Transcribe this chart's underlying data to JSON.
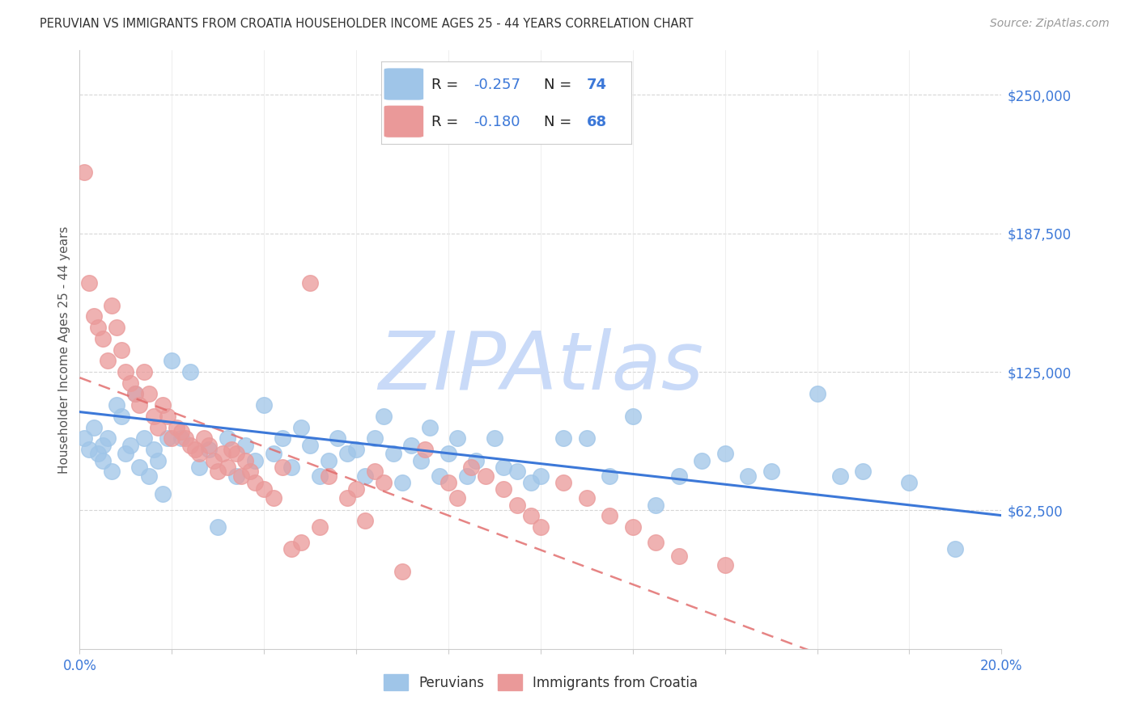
{
  "title": "PERUVIAN VS IMMIGRANTS FROM CROATIA HOUSEHOLDER INCOME AGES 25 - 44 YEARS CORRELATION CHART",
  "source": "Source: ZipAtlas.com",
  "ylabel": "Householder Income Ages 25 - 44 years",
  "xlim": [
    0.0,
    0.2
  ],
  "ylim": [
    0,
    270000
  ],
  "yticks": [
    0,
    62500,
    125000,
    187500,
    250000
  ],
  "ytick_labels": [
    "",
    "$62,500",
    "$125,000",
    "$187,500",
    "$250,000"
  ],
  "xticks": [
    0.0,
    0.02,
    0.04,
    0.06,
    0.08,
    0.1,
    0.12,
    0.14,
    0.16,
    0.18,
    0.2
  ],
  "blue_color": "#9fc5e8",
  "pink_color": "#ea9999",
  "blue_line_color": "#3c78d8",
  "pink_line_color": "#e06666",
  "legend_R_blue": "-0.257",
  "legend_N_blue": "74",
  "legend_R_pink": "-0.180",
  "legend_N_pink": "68",
  "label_blue": "Peruvians",
  "label_pink": "Immigrants from Croatia",
  "watermark": "ZIPAtlas",
  "watermark_color": "#c9daf8",
  "blue_scatter_x": [
    0.001,
    0.002,
    0.003,
    0.004,
    0.005,
    0.005,
    0.006,
    0.007,
    0.008,
    0.009,
    0.01,
    0.011,
    0.012,
    0.013,
    0.014,
    0.015,
    0.016,
    0.017,
    0.018,
    0.019,
    0.02,
    0.022,
    0.024,
    0.026,
    0.028,
    0.03,
    0.032,
    0.034,
    0.036,
    0.038,
    0.04,
    0.042,
    0.044,
    0.046,
    0.048,
    0.05,
    0.052,
    0.054,
    0.056,
    0.058,
    0.06,
    0.062,
    0.064,
    0.066,
    0.068,
    0.07,
    0.072,
    0.074,
    0.076,
    0.078,
    0.08,
    0.082,
    0.084,
    0.086,
    0.09,
    0.092,
    0.095,
    0.098,
    0.1,
    0.105,
    0.11,
    0.115,
    0.12,
    0.125,
    0.13,
    0.135,
    0.14,
    0.145,
    0.15,
    0.16,
    0.165,
    0.17,
    0.18,
    0.19
  ],
  "blue_scatter_y": [
    95000,
    90000,
    100000,
    88000,
    92000,
    85000,
    95000,
    80000,
    110000,
    105000,
    88000,
    92000,
    115000,
    82000,
    95000,
    78000,
    90000,
    85000,
    70000,
    95000,
    130000,
    95000,
    125000,
    82000,
    90000,
    55000,
    95000,
    78000,
    92000,
    85000,
    110000,
    88000,
    95000,
    82000,
    100000,
    92000,
    78000,
    85000,
    95000,
    88000,
    90000,
    78000,
    95000,
    105000,
    88000,
    75000,
    92000,
    85000,
    100000,
    78000,
    88000,
    95000,
    78000,
    85000,
    95000,
    82000,
    80000,
    75000,
    78000,
    95000,
    95000,
    78000,
    105000,
    65000,
    78000,
    85000,
    88000,
    78000,
    80000,
    115000,
    78000,
    80000,
    75000,
    45000
  ],
  "pink_scatter_x": [
    0.001,
    0.002,
    0.003,
    0.004,
    0.005,
    0.006,
    0.007,
    0.008,
    0.009,
    0.01,
    0.011,
    0.012,
    0.013,
    0.014,
    0.015,
    0.016,
    0.017,
    0.018,
    0.019,
    0.02,
    0.021,
    0.022,
    0.023,
    0.024,
    0.025,
    0.026,
    0.027,
    0.028,
    0.029,
    0.03,
    0.031,
    0.032,
    0.033,
    0.034,
    0.035,
    0.036,
    0.037,
    0.038,
    0.04,
    0.042,
    0.044,
    0.046,
    0.048,
    0.05,
    0.052,
    0.054,
    0.058,
    0.06,
    0.062,
    0.064,
    0.066,
    0.07,
    0.075,
    0.08,
    0.082,
    0.085,
    0.088,
    0.092,
    0.095,
    0.098,
    0.1,
    0.105,
    0.11,
    0.115,
    0.12,
    0.125,
    0.13,
    0.14
  ],
  "pink_scatter_y": [
    215000,
    165000,
    150000,
    145000,
    140000,
    130000,
    155000,
    145000,
    135000,
    125000,
    120000,
    115000,
    110000,
    125000,
    115000,
    105000,
    100000,
    110000,
    105000,
    95000,
    100000,
    98000,
    95000,
    92000,
    90000,
    88000,
    95000,
    92000,
    85000,
    80000,
    88000,
    82000,
    90000,
    88000,
    78000,
    85000,
    80000,
    75000,
    72000,
    68000,
    82000,
    45000,
    48000,
    165000,
    55000,
    78000,
    68000,
    72000,
    58000,
    80000,
    75000,
    35000,
    90000,
    75000,
    68000,
    82000,
    78000,
    72000,
    65000,
    60000,
    55000,
    75000,
    68000,
    60000,
    55000,
    48000,
    42000,
    38000
  ]
}
